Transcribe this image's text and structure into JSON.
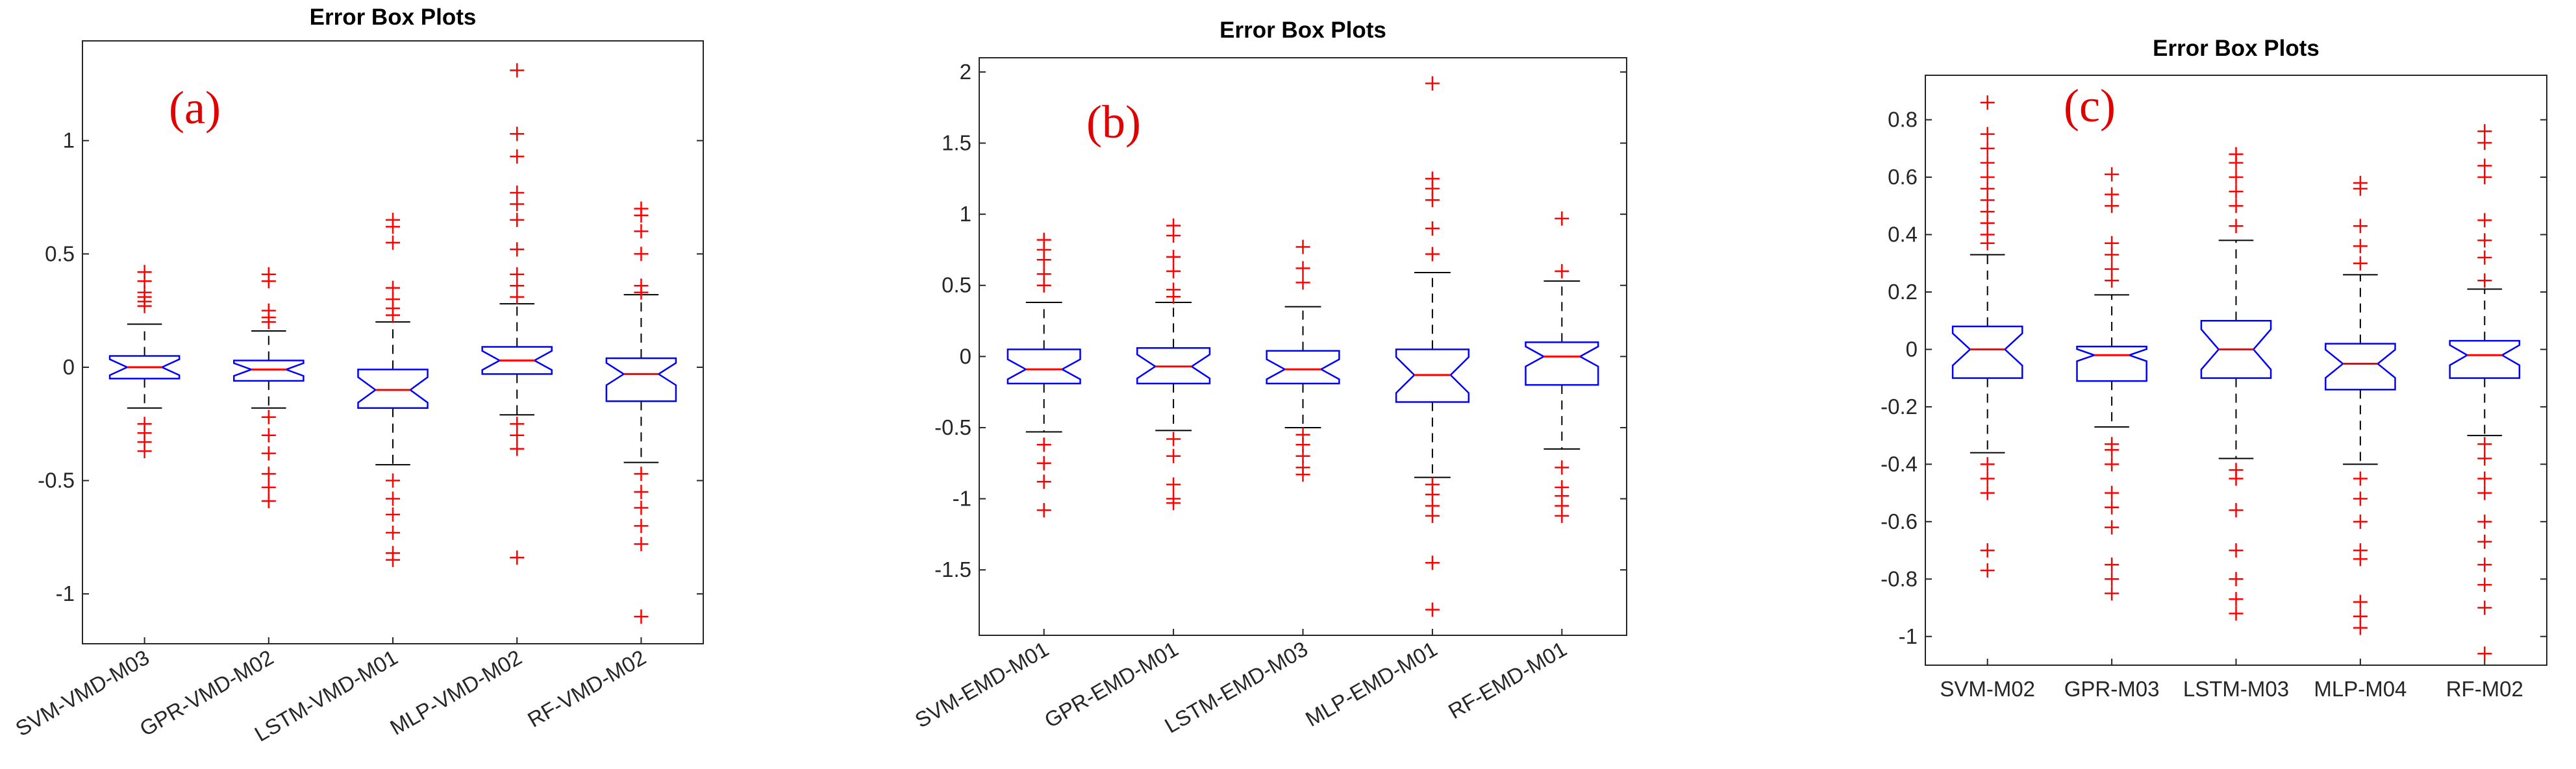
{
  "chart_data": [
    {
      "type": "box",
      "title": "Error Box Plots",
      "panel_label": "(a)",
      "box_color": "#0000ff",
      "median_color": "#ff0000",
      "whisker_color": "#000000",
      "outlier_color": "#ff0000",
      "ylim": [
        -1.22,
        1.44
      ],
      "yticks": [
        -1,
        -0.5,
        0,
        0.5,
        1
      ],
      "categories": [
        "SVM-VMD-M03",
        "GPR-VMD-M02",
        "LSTM-VMD-M01",
        "MLP-VMD-M02",
        "RF-VMD-M02"
      ],
      "boxes": [
        {
          "median": 0,
          "q1": -0.05,
          "q3": 0.05,
          "whisker_low": -0.18,
          "whisker_high": 0.19,
          "outliers": [
            0.42,
            0.38,
            0.33,
            0.31,
            0.29,
            0.27,
            -0.25,
            -0.29,
            -0.33,
            -0.37
          ]
        },
        {
          "median": -0.01,
          "q1": -0.06,
          "q3": 0.03,
          "whisker_low": -0.18,
          "whisker_high": 0.16,
          "outliers": [
            0.41,
            0.38,
            0.25,
            0.22,
            0.2,
            -0.22,
            -0.3,
            -0.38,
            -0.47,
            -0.53,
            -0.59
          ]
        },
        {
          "median": -0.1,
          "q1": -0.18,
          "q3": -0.01,
          "whisker_low": -0.43,
          "whisker_high": 0.2,
          "outliers": [
            0.65,
            0.62,
            0.55,
            0.35,
            0.3,
            0.26,
            0.23,
            -0.5,
            -0.58,
            -0.65,
            -0.73,
            -0.82,
            -0.85
          ]
        },
        {
          "median": 0.03,
          "q1": -0.03,
          "q3": 0.09,
          "whisker_low": -0.21,
          "whisker_high": 0.28,
          "outliers": [
            1.31,
            1.03,
            0.93,
            0.77,
            0.72,
            0.65,
            0.52,
            0.41,
            0.36,
            0.31,
            -0.25,
            -0.3,
            -0.36,
            -0.84
          ]
        },
        {
          "median": -0.03,
          "q1": -0.15,
          "q3": 0.04,
          "whisker_low": -0.42,
          "whisker_high": 0.32,
          "outliers": [
            0.7,
            0.67,
            0.6,
            0.5,
            0.36,
            0.33,
            -0.47,
            -0.55,
            -0.62,
            -0.7,
            -0.78,
            -1.1
          ]
        }
      ]
    },
    {
      "type": "box",
      "title": "Error Box Plots",
      "panel_label": "(b)",
      "box_color": "#0000ff",
      "median_color": "#ff0000",
      "whisker_color": "#000000",
      "outlier_color": "#ff0000",
      "ylim": [
        -1.96,
        2.1
      ],
      "yticks": [
        -1.5,
        -1,
        -0.5,
        0,
        0.5,
        1,
        1.5,
        2
      ],
      "categories": [
        "SVM-EMD-M01",
        "GPR-EMD-M01",
        "LSTM-EMD-M03",
        "MLP-EMD-M01",
        "RF-EMD-M01"
      ],
      "boxes": [
        {
          "median": -0.09,
          "q1": -0.19,
          "q3": 0.05,
          "whisker_low": -0.53,
          "whisker_high": 0.38,
          "outliers": [
            0.82,
            0.75,
            0.68,
            0.58,
            0.5,
            -0.62,
            -0.75,
            -0.88,
            -1.08
          ]
        },
        {
          "median": -0.07,
          "q1": -0.19,
          "q3": 0.06,
          "whisker_low": -0.52,
          "whisker_high": 0.38,
          "outliers": [
            0.92,
            0.85,
            0.7,
            0.6,
            0.47,
            0.42,
            -0.58,
            -0.7,
            -0.9,
            -1,
            -1.03
          ]
        },
        {
          "median": -0.09,
          "q1": -0.19,
          "q3": 0.04,
          "whisker_low": -0.5,
          "whisker_high": 0.35,
          "outliers": [
            0.77,
            0.62,
            0.52,
            -0.55,
            -0.62,
            -0.7,
            -0.78,
            -0.83
          ]
        },
        {
          "median": -0.13,
          "q1": -0.32,
          "q3": 0.05,
          "whisker_low": -0.85,
          "whisker_high": 0.59,
          "outliers": [
            1.92,
            1.25,
            1.18,
            1.1,
            0.9,
            0.72,
            -0.9,
            -0.97,
            -1.05,
            -1.12,
            -1.45,
            -1.78
          ]
        },
        {
          "median": 0,
          "q1": -0.2,
          "q3": 0.1,
          "whisker_low": -0.65,
          "whisker_high": 0.53,
          "outliers": [
            0.97,
            0.6,
            -0.78,
            -0.92,
            -0.98,
            -1.05,
            -1.12
          ]
        }
      ]
    },
    {
      "type": "box",
      "title": "Error Box Plots",
      "panel_label": "(c)",
      "box_color": "#0000ff",
      "median_color": "#ff0000",
      "whisker_color": "#000000",
      "outlier_color": "#ff0000",
      "ylim": [
        -1.1,
        0.955
      ],
      "yticks": [
        -1,
        -0.8,
        -0.6,
        -0.4,
        -0.2,
        0,
        0.2,
        0.4,
        0.6,
        0.8
      ],
      "categories": [
        "SVM-M02",
        "GPR-M03",
        "LSTM-M03",
        "MLP-M04",
        "RF-M02"
      ],
      "boxes": [
        {
          "median": 0,
          "q1": -0.1,
          "q3": 0.08,
          "whisker_low": -0.36,
          "whisker_high": 0.33,
          "outliers": [
            0.86,
            0.75,
            0.7,
            0.65,
            0.6,
            0.56,
            0.52,
            0.48,
            0.44,
            0.4,
            0.37,
            -0.4,
            -0.45,
            -0.5,
            -0.7,
            -0.77
          ]
        },
        {
          "median": -0.02,
          "q1": -0.11,
          "q3": 0.01,
          "whisker_low": -0.27,
          "whisker_high": 0.19,
          "outliers": [
            0.61,
            0.54,
            0.5,
            0.37,
            0.33,
            0.28,
            0.24,
            -0.33,
            -0.35,
            -0.4,
            -0.5,
            -0.55,
            -0.62,
            -0.75,
            -0.8,
            -0.85
          ]
        },
        {
          "median": 0,
          "q1": -0.1,
          "q3": 0.1,
          "whisker_low": -0.38,
          "whisker_high": 0.38,
          "outliers": [
            0.68,
            0.65,
            0.6,
            0.55,
            0.5,
            0.43,
            -0.42,
            -0.45,
            -0.56,
            -0.7,
            -0.8,
            -0.87,
            -0.92
          ]
        },
        {
          "median": -0.05,
          "q1": -0.14,
          "q3": 0.02,
          "whisker_low": -0.4,
          "whisker_high": 0.26,
          "outliers": [
            0.58,
            0.56,
            0.43,
            0.36,
            0.3,
            -0.45,
            -0.52,
            -0.6,
            -0.7,
            -0.73,
            -0.88,
            -0.93,
            -0.97
          ]
        },
        {
          "median": -0.02,
          "q1": -0.1,
          "q3": 0.03,
          "whisker_low": -0.3,
          "whisker_high": 0.21,
          "outliers": [
            0.76,
            0.72,
            0.64,
            0.6,
            0.45,
            0.38,
            0.32,
            0.24,
            -0.33,
            -0.38,
            -0.45,
            -0.5,
            -0.6,
            -0.67,
            -0.75,
            -0.82,
            -0.9,
            -1.06
          ]
        }
      ]
    }
  ]
}
